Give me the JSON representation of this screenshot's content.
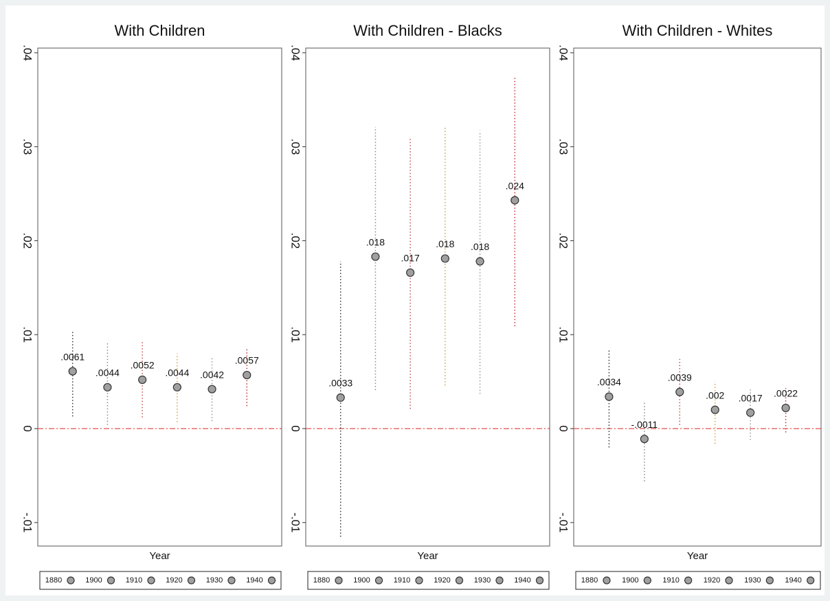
{
  "chart_data": [
    {
      "type": "errorbar",
      "title": "With Children",
      "xlabel": "Year",
      "categories": [
        "1880",
        "1900",
        "1910",
        "1920",
        "1930",
        "1940"
      ],
      "colors": [
        "#333333",
        "#888888",
        "#c05050",
        "#d4a040",
        "#999999",
        "#c03030"
      ],
      "values": [
        0.0061,
        0.0044,
        0.0052,
        0.0044,
        0.0042,
        0.0057
      ],
      "value_labels": [
        ".0061",
        ".0044",
        ".0052",
        ".0044",
        ".0042",
        ".0057"
      ],
      "ci_low": [
        0.0013,
        0.0004,
        0.0012,
        0.0007,
        0.0008,
        0.0024
      ],
      "ci_high": [
        0.0103,
        0.0092,
        0.0092,
        0.008,
        0.0077,
        0.0086
      ],
      "hline": 0,
      "ylim": [
        -0.0125,
        0.0405
      ],
      "yticks": [
        {
          "value": -0.01,
          "label": "-.01"
        },
        0,
        {
          "value": 0.01,
          "label": ".01"
        },
        {
          "value": 0.02,
          "label": ".02"
        },
        {
          "value": 0.03,
          "label": ".03"
        },
        {
          "value": 0.04,
          "label": ".04"
        }
      ]
    },
    {
      "type": "errorbar",
      "title": "With Children - Blacks",
      "xlabel": "Year",
      "categories": [
        "1880",
        "1900",
        "1910",
        "1920",
        "1930",
        "1940"
      ],
      "colors": [
        "#333333",
        "#888888",
        "#c05050",
        "#d4a040",
        "#999999",
        "#c03030"
      ],
      "values": [
        0.0033,
        0.0183,
        0.0166,
        0.0181,
        0.0178,
        0.0243
      ],
      "value_labels": [
        ".0033",
        ".018",
        ".017",
        ".018",
        ".018",
        ".024"
      ],
      "ci_low": [
        -0.0115,
        0.0041,
        0.0021,
        0.0046,
        0.0037,
        0.0109
      ],
      "ci_high": [
        0.0178,
        0.0321,
        0.031,
        0.0321,
        0.0317,
        0.0374
      ],
      "hline": 0,
      "ylim": [
        -0.0125,
        0.0405
      ],
      "yticks": [
        {
          "value": -0.01,
          "label": "-.01"
        },
        0,
        {
          "value": 0.01,
          "label": ".01"
        },
        {
          "value": 0.02,
          "label": ".02"
        },
        {
          "value": 0.03,
          "label": ".03"
        },
        {
          "value": 0.04,
          "label": ".04"
        }
      ]
    },
    {
      "type": "errorbar",
      "title": "With Children - Whites",
      "xlabel": "Year",
      "categories": [
        "1880",
        "1900",
        "1910",
        "1920",
        "1930",
        "1940"
      ],
      "colors": [
        "#333333",
        "#888888",
        "#c05050",
        "#d4a040",
        "#999999",
        "#c03030"
      ],
      "values": [
        0.0034,
        -0.0011,
        0.0039,
        0.002,
        0.0017,
        0.0022
      ],
      "value_labels": [
        ".0034",
        "-.0011",
        ".0039",
        ".002",
        ".0017",
        ".0022"
      ],
      "ci_low": [
        -0.002,
        -0.0056,
        0.0004,
        -0.0016,
        -0.0012,
        -0.0004
      ],
      "ci_high": [
        0.0085,
        0.0028,
        0.0074,
        0.005,
        0.0043,
        0.0043
      ],
      "hline": 0,
      "ylim": [
        -0.0125,
        0.0405
      ],
      "yticks": [
        {
          "value": -0.01,
          "label": "-.01"
        },
        0,
        {
          "value": 0.01,
          "label": ".01"
        },
        {
          "value": 0.02,
          "label": ".02"
        },
        {
          "value": 0.03,
          "label": ".03"
        },
        {
          "value": 0.04,
          "label": ".04"
        }
      ]
    }
  ]
}
